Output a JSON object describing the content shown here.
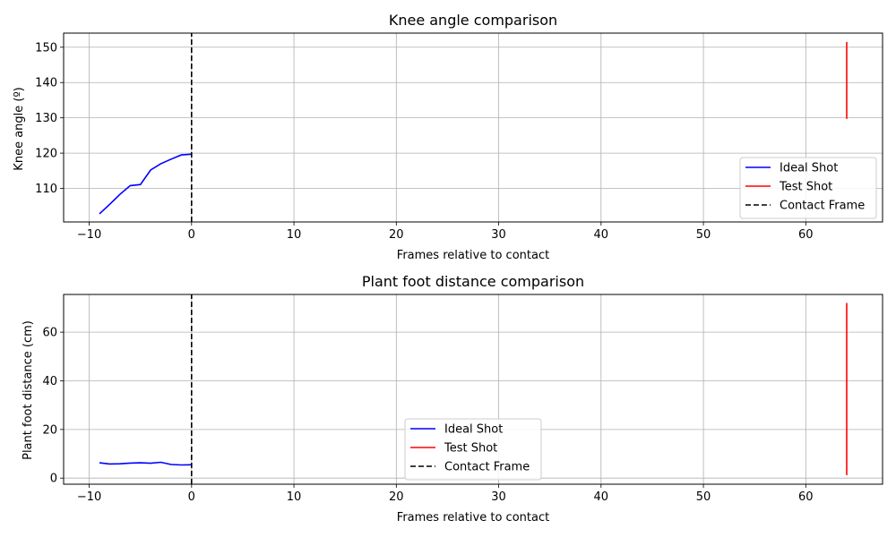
{
  "chart_data": [
    {
      "type": "line",
      "title": "Knee angle comparison",
      "xlabel": "Frames relative to contact",
      "ylabel": "Knee angle (º)",
      "xlim": [
        -12.5,
        67.5
      ],
      "ylim": [
        100.5,
        154
      ],
      "xticks": [
        -10,
        0,
        10,
        20,
        30,
        40,
        50,
        60
      ],
      "yticks": [
        110,
        120,
        130,
        140,
        150
      ],
      "grid": true,
      "legend": "bottom-right",
      "series": [
        {
          "name": "Ideal Shot",
          "color": "#0000ff",
          "style": "solid",
          "x": [
            -9,
            -8,
            -7,
            -6,
            -5,
            -4,
            -3,
            -2,
            -1,
            0
          ],
          "y": [
            102.8,
            105.5,
            108.3,
            110.8,
            111.1,
            115.2,
            117.0,
            118.3,
            119.5,
            119.7
          ]
        },
        {
          "name": "Test Shot",
          "color": "#ff0000",
          "style": "solid",
          "x": [
            64,
            64
          ],
          "y": [
            129.7,
            151.5
          ]
        },
        {
          "name": "Contact Frame",
          "color": "#000000",
          "style": "dashed",
          "x": [
            0,
            0
          ],
          "y": [
            100.5,
            154
          ]
        }
      ]
    },
    {
      "type": "line",
      "title": "Plant foot distance comparison",
      "xlabel": "Frames relative to contact",
      "ylabel": "Plant foot distance (cm)",
      "xlim": [
        -12.5,
        67.5
      ],
      "ylim": [
        -2.5,
        75.5
      ],
      "xticks": [
        -10,
        0,
        10,
        20,
        30,
        40,
        50,
        60
      ],
      "yticks": [
        0,
        20,
        40,
        60
      ],
      "grid": true,
      "legend": "lower center",
      "series": [
        {
          "name": "Ideal Shot",
          "color": "#0000ff",
          "style": "solid",
          "x": [
            -9,
            -8,
            -7,
            -6,
            -5,
            -4,
            -3,
            -2,
            -1,
            0
          ],
          "y": [
            6.3,
            5.8,
            5.9,
            6.2,
            6.3,
            6.1,
            6.5,
            5.6,
            5.4,
            5.5
          ]
        },
        {
          "name": "Test Shot",
          "color": "#ff0000",
          "style": "solid",
          "x": [
            64,
            64
          ],
          "y": [
            1.2,
            72.0
          ]
        },
        {
          "name": "Contact Frame",
          "color": "#000000",
          "style": "dashed",
          "x": [
            0,
            0
          ],
          "y": [
            -2.5,
            75.5
          ]
        }
      ]
    }
  ]
}
